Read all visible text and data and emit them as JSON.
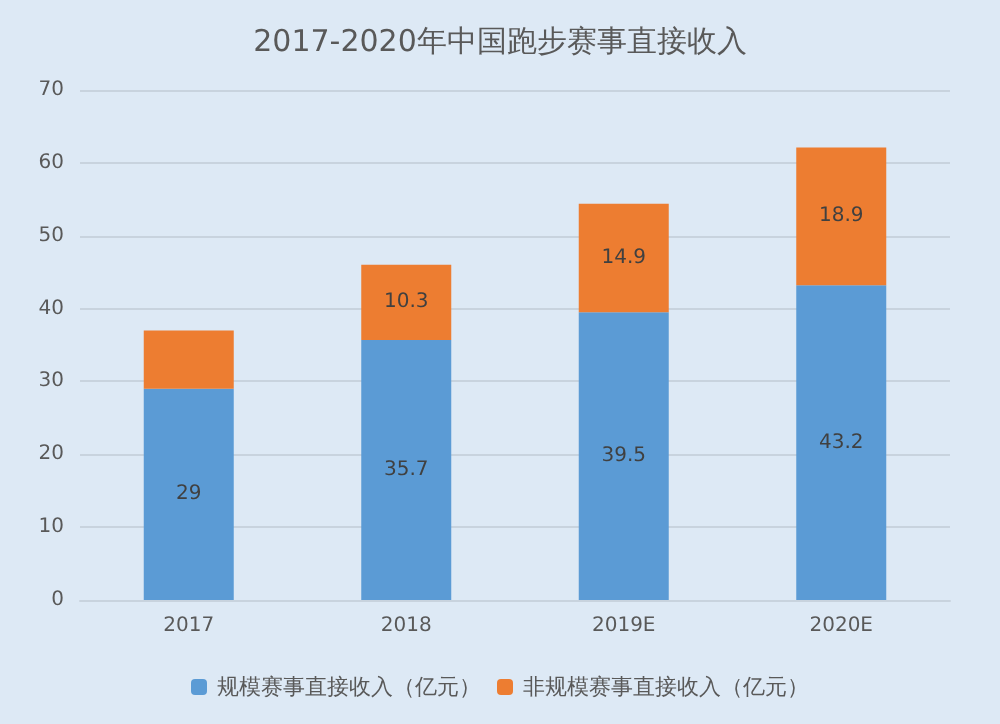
{
  "chart_data": {
    "type": "bar",
    "title": "2017-2020年中国跑步赛事直接收入",
    "categories": [
      "2017",
      "2018",
      "2019E",
      "2020E"
    ],
    "stacked": true,
    "series": [
      {
        "name": "规模赛事直接收入（亿元）",
        "color": "#5b9bd5",
        "values": [
          29,
          35.7,
          39.5,
          43.2
        ],
        "value_labels": [
          "29",
          "35.7",
          "39.5",
          "43.2"
        ]
      },
      {
        "name": "非规模赛事直接收入（亿元）",
        "color": "#ed7d31",
        "values": [
          8,
          10.3,
          14.9,
          18.9
        ],
        "value_labels": [
          null,
          "10.3",
          "14.9",
          "18.9"
        ]
      }
    ],
    "ylim": [
      0,
      70
    ],
    "yticks": [
      0,
      10,
      20,
      30,
      40,
      50,
      60,
      70
    ],
    "grid": "y",
    "legend": "bottom"
  }
}
